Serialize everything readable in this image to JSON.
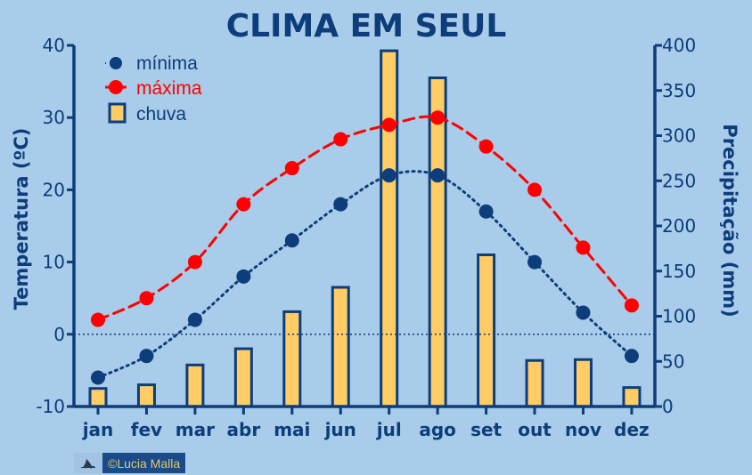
{
  "chart_data": {
    "type": "bar+line",
    "title": "CLIMA EM SEUL",
    "categories": [
      "jan",
      "fev",
      "mar",
      "abr",
      "mai",
      "jun",
      "jul",
      "ago",
      "set",
      "out",
      "nov",
      "dez"
    ],
    "series": [
      {
        "name": "mínima",
        "type": "line",
        "axis": "left",
        "style": "dotted",
        "color": "#0d3d7a",
        "values": [
          -6,
          -3,
          2,
          8,
          13,
          18,
          22,
          22,
          17,
          10,
          3,
          -3
        ]
      },
      {
        "name": "máxima",
        "type": "line",
        "axis": "left",
        "style": "dashed",
        "color": "#ff0000",
        "values": [
          2,
          5,
          10,
          18,
          23,
          27,
          29,
          30,
          26,
          20,
          12,
          4
        ]
      },
      {
        "name": "chuva",
        "type": "bar",
        "axis": "right",
        "color": "#ffcc66",
        "values": [
          20,
          24,
          46,
          64,
          105,
          132,
          394,
          364,
          168,
          51,
          52,
          21
        ]
      }
    ],
    "left_axis": {
      "label": "Temperatura (ºC)",
      "ylim": [
        -10,
        40
      ],
      "ticks": [
        -10,
        0,
        10,
        20,
        30,
        40
      ]
    },
    "right_axis": {
      "label": "Precipitação (mm)",
      "ylim": [
        0,
        400
      ],
      "ticks": [
        0,
        50,
        100,
        150,
        200,
        250,
        300,
        350,
        400
      ]
    },
    "zero_line": "dotted at 0 ºC",
    "grid": false,
    "legend_position": "top-left"
  },
  "legend": {
    "min_label": "mínima",
    "max_label": "máxima",
    "rain_label": "chuva"
  },
  "colors": {
    "background": "#a8cce9",
    "axis": "#0d3d7a",
    "min_line": "#0d3d7a",
    "max_line": "#ff0000",
    "bar_fill": "#ffcc66",
    "bar_stroke": "#0d3d7a"
  },
  "credit": {
    "text": "©Lucia Malla",
    "icon": "shark-fin-icon"
  }
}
